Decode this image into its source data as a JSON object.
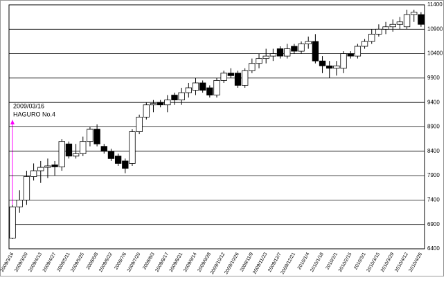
{
  "chart_data": {
    "type": "candlestick",
    "categories": [
      "2009/3/16",
      null,
      "2009/3/30",
      null,
      "2009/4/13",
      null,
      "2009/4/27",
      null,
      "2009/5/11",
      null,
      "2009/5/25",
      null,
      "2009/6/8",
      null,
      "2009/6/22",
      null,
      "2009/7/6",
      null,
      "2009/7/20",
      null,
      "2009/8/3",
      null,
      "2009/8/17",
      null,
      "2009/8/31",
      null,
      "2009/9/14",
      null,
      "2009/9/28",
      null,
      "2009/10/12",
      null,
      "2009/10/26",
      null,
      "2009/11/9",
      null,
      "2009/11/23",
      null,
      "2009/12/7",
      null,
      "2009/12/21",
      null,
      "2010/1/4",
      null,
      "2010/1/18",
      null,
      "2010/2/1",
      null,
      "2010/2/15",
      null,
      "2010/3/1",
      null,
      "2010/3/15",
      null,
      "2010/3/29",
      null,
      "2010/4/12",
      null,
      "2010/4/26"
    ],
    "open": [
      6620,
      7260,
      7400,
      7880,
      8000,
      8070,
      8120,
      8080,
      8550,
      8300,
      8350,
      8600,
      8850,
      8500,
      8400,
      8300,
      8200,
      8150,
      8800,
      9100,
      9350,
      9400,
      9350,
      9550,
      9450,
      9600,
      9650,
      9800,
      9700,
      9550,
      9850,
      10000,
      10000,
      9750,
      10050,
      10200,
      10300,
      10350,
      10500,
      10350,
      10550,
      10450,
      10600,
      10650,
      10250,
      10150,
      10100,
      10100,
      10400,
      10350,
      10550,
      10650,
      10800,
      10900,
      10950,
      11000,
      10950,
      11200,
      11200
    ],
    "high": [
      7300,
      7600,
      8000,
      8150,
      8200,
      8250,
      8200,
      8650,
      8600,
      8550,
      8700,
      8900,
      8950,
      8550,
      8450,
      8350,
      8250,
      8850,
      9150,
      9400,
      9450,
      9450,
      9550,
      9600,
      9700,
      9800,
      9900,
      9850,
      9750,
      9900,
      10050,
      10100,
      10050,
      10100,
      10300,
      10400,
      10500,
      10500,
      10550,
      10600,
      10600,
      10650,
      10750,
      10800,
      10350,
      10250,
      10250,
      10450,
      10450,
      10600,
      10700,
      10900,
      11000,
      11050,
      11100,
      11150,
      11300,
      11300,
      11250
    ],
    "low": [
      6600,
      7140,
      7300,
      7800,
      7750,
      7850,
      7900,
      8000,
      8250,
      8250,
      8300,
      8500,
      8500,
      8350,
      8200,
      8100,
      7950,
      8100,
      8750,
      9050,
      9200,
      9300,
      9200,
      9350,
      9350,
      9500,
      9550,
      9600,
      9500,
      9500,
      9800,
      9900,
      9700,
      9700,
      10000,
      10100,
      10200,
      10250,
      10300,
      10300,
      10400,
      10400,
      10500,
      10200,
      10000,
      9900,
      9950,
      10000,
      10300,
      10300,
      10500,
      10600,
      10750,
      10800,
      10850,
      10900,
      10900,
      11050,
      10950
    ],
    "close": [
      7260,
      7400,
      7880,
      8000,
      8070,
      8100,
      8080,
      8600,
      8300,
      8350,
      8600,
      8850,
      8550,
      8400,
      8250,
      8150,
      8050,
      8800,
      9100,
      9350,
      9380,
      9350,
      9450,
      9450,
      9600,
      9700,
      9800,
      9650,
      9550,
      9850,
      10000,
      9950,
      9750,
      10050,
      10200,
      10300,
      10350,
      10400,
      10350,
      10500,
      10450,
      10600,
      10650,
      10250,
      10150,
      10100,
      10150,
      10400,
      10350,
      10550,
      10650,
      10800,
      10900,
      10950,
      11000,
      11050,
      11200,
      11250,
      11000
    ],
    "up_color": "#ffffff",
    "down_color": "#000000",
    "ylim": [
      6400,
      11400
    ],
    "yticks": [
      6400,
      6900,
      7400,
      7900,
      8400,
      8900,
      9400,
      9900,
      10400,
      10900,
      11400
    ],
    "grid": true,
    "annotation": [
      "2009/03/16",
      "HAGURO No.4"
    ],
    "annotation_color": "#ff00ff"
  }
}
